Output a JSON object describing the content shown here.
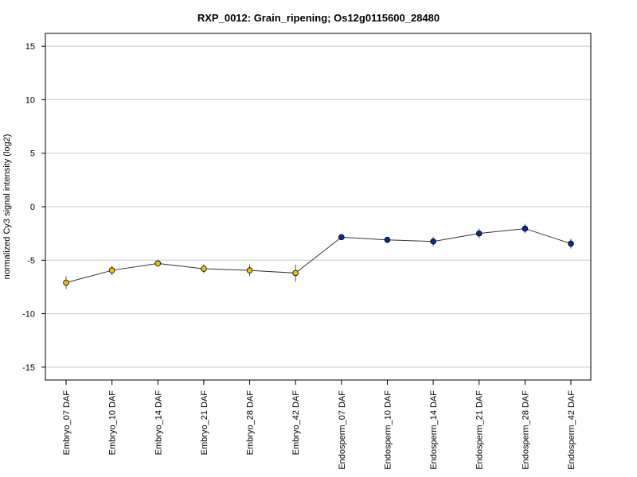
{
  "chart_data": {
    "type": "line",
    "title": "RXP_0012: Grain_ripening; Os12g0115600_28480",
    "ylabel": "normalized Cy3 signal intensity (log2)",
    "xlabel": "",
    "ylim": [
      -16.2,
      16.2
    ],
    "yticks": [
      15,
      10,
      5,
      0,
      -5,
      -10,
      -15
    ],
    "grid": "horizontal",
    "categories": [
      "Embryo_07 DAF",
      "Embryo_10 DAF",
      "Embryo_14 DAF",
      "Embryo_21 DAF",
      "Embryo_28 DAF",
      "Embryo_42 DAF",
      "Endosperm_07 DAF",
      "Endosperm_10 DAF",
      "Endosperm_14 DAF",
      "Endosperm_21 DAF",
      "Endosperm_28 DAF",
      "Endosperm_42 DAF"
    ],
    "series": [
      {
        "values": [
          -7.1,
          -5.95,
          -5.3,
          -5.8,
          -5.95,
          -6.2,
          -2.85,
          -3.1,
          -3.25,
          -2.5,
          -2.05,
          -3.45
        ],
        "error": [
          0.6,
          0.45,
          0.2,
          0.4,
          0.55,
          0.8,
          0.2,
          0.25,
          0.45,
          0.45,
          0.45,
          0.45
        ],
        "point_colors": [
          "#e8c200",
          "#e8c200",
          "#e8c200",
          "#e8c200",
          "#e8c200",
          "#e8c200",
          "#0a2a9a",
          "#0a2a9a",
          "#0a2a9a",
          "#0a2a9a",
          "#0a2a9a",
          "#0a2a9a"
        ]
      }
    ]
  }
}
